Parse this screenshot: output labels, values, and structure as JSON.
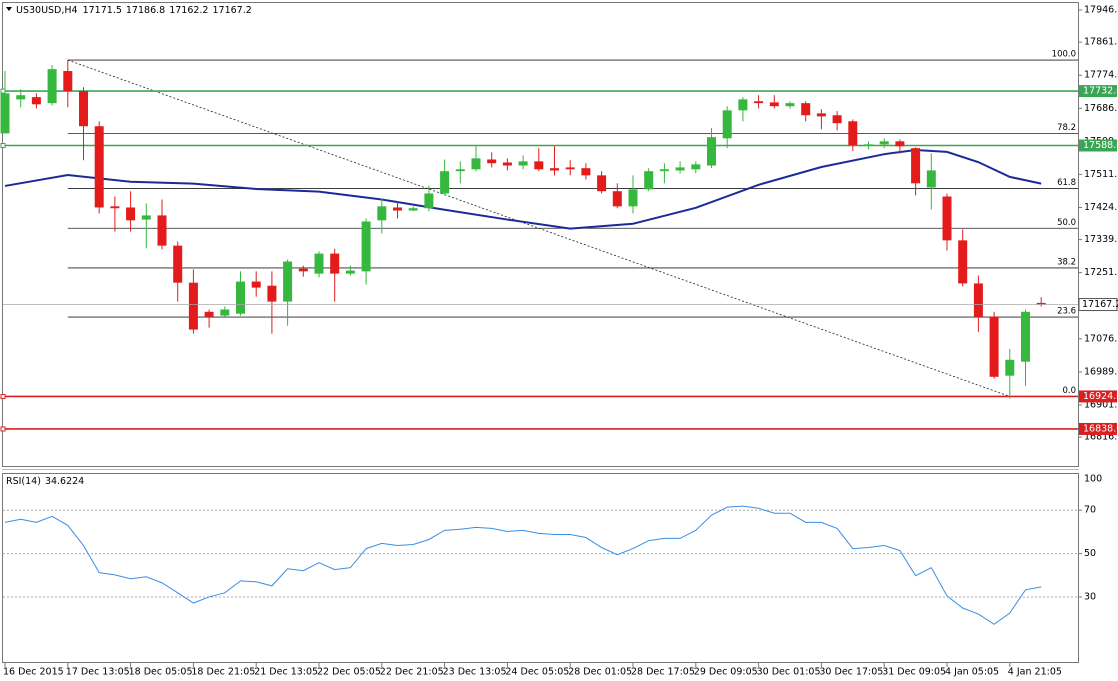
{
  "chart_data": {
    "type": "candlestick",
    "symbol": "US30USD,H4",
    "up_color": "#35b83d",
    "down_color": "#e31b1b",
    "x_labels": [
      "16 Dec 2015",
      "17 Dec 13:05",
      "18 Dec 05:05",
      "18 Dec 21:05",
      "21 Dec 13:05",
      "22 Dec 05:05",
      "22 Dec 21:05",
      "23 Dec 13:05",
      "24 Dec 05:05",
      "28 Dec 01:05",
      "28 Dec 17:05",
      "29 Dec 09:05",
      "30 Dec 01:05",
      "30 Dec 17:05",
      "31 Dec 09:05",
      "4 Jan 05:05",
      "4 Jan 21:05"
    ],
    "open": [
      17620,
      17710,
      17716,
      17700,
      17785,
      17732,
      17639,
      17427,
      17424,
      17392,
      17403,
      17323,
      17225,
      17148,
      17138,
      17143,
      17228,
      17217,
      17175,
      17262,
      17249,
      17302,
      17249,
      17255,
      17390,
      17424,
      17416,
      17422,
      17461,
      17520,
      17525,
      17551,
      17543,
      17535,
      17546,
      17528,
      17530,
      17528,
      17509,
      17467,
      17427,
      17472,
      17520,
      17522,
      17525,
      17535,
      17607,
      17681,
      17705,
      17702,
      17692,
      17700,
      17673,
      17668,
      17652,
      17589,
      17591,
      17599,
      17581,
      17477,
      17453,
      17337,
      17223,
      17135,
      16979,
      17016,
      17171.5
    ],
    "high": [
      17785,
      17737,
      17726,
      17801,
      17814,
      17742,
      17652,
      17453,
      17467,
      17435,
      17445,
      17334,
      17260,
      17154,
      17162,
      17255,
      17255,
      17255,
      17286,
      17270,
      17308,
      17315,
      17270,
      17395,
      17448,
      17440,
      17427,
      17482,
      17551,
      17546,
      17586,
      17570,
      17554,
      17562,
      17581,
      17586,
      17549,
      17541,
      17520,
      17488,
      17509,
      17528,
      17541,
      17546,
      17546,
      17634,
      17692,
      17716,
      17721,
      17721,
      17705,
      17705,
      17684,
      17679,
      17657,
      17599,
      17607,
      17604,
      17583,
      17567,
      17461,
      17366,
      17244,
      17148,
      17050,
      17154,
      17186.8
    ],
    "low": [
      17620,
      17689,
      17686,
      17694,
      17689,
      17549,
      17408,
      17360,
      17360,
      17316,
      17313,
      17175,
      17090,
      17106,
      17135,
      17138,
      17188,
      17090,
      17111,
      17241,
      17239,
      17175,
      17244,
      17220,
      17355,
      17395,
      17414,
      17414,
      17456,
      17488,
      17520,
      17530,
      17522,
      17525,
      17520,
      17509,
      17509,
      17498,
      17461,
      17422,
      17408,
      17467,
      17488,
      17514,
      17514,
      17528,
      17581,
      17652,
      17686,
      17686,
      17686,
      17652,
      17631,
      17628,
      17573,
      17578,
      17581,
      17567,
      17456,
      17419,
      17310,
      17215,
      17095,
      16971,
      16918,
      16952,
      17162.2
    ],
    "close": [
      17726,
      17721,
      17697,
      17790,
      17732,
      17639,
      17424,
      17422,
      17390,
      17403,
      17323,
      17225,
      17101,
      17135,
      17154,
      17228,
      17212,
      17175,
      17281,
      17255,
      17302,
      17249,
      17257,
      17387,
      17427,
      17416,
      17422,
      17461,
      17520,
      17525,
      17554,
      17541,
      17535,
      17546,
      17525,
      17522,
      17525,
      17509,
      17467,
      17427,
      17472,
      17520,
      17525,
      17530,
      17538,
      17610,
      17681,
      17710,
      17700,
      17692,
      17700,
      17668,
      17665,
      17647,
      17589,
      17591,
      17599,
      17586,
      17488,
      17522,
      17337,
      17223,
      17135,
      16976,
      17021,
      17148,
      17167.2
    ],
    "ylim": [
      16740,
      17965
    ],
    "yticks": [
      17946.5,
      17861.5,
      {
        "value": 17774,
        "label": "17774.0"
      },
      17686.5,
      {
        "value": 17599,
        "label": "17599.0"
      },
      17511.5,
      {
        "value": 17424,
        "label": "17424.0"
      },
      {
        "value": 17339,
        "label": "17339.0"
      },
      17251.5,
      17076.5,
      {
        "value": 16989,
        "label": "16989.0"
      },
      16901.5,
      16816.5
    ],
    "ma": {
      "color": "#1c2a99",
      "x": [
        0,
        4,
        8,
        12,
        16,
        20,
        24,
        28,
        32,
        36,
        40,
        44,
        48,
        52,
        56,
        58,
        60,
        62,
        64,
        66
      ],
      "values": [
        17481,
        17510,
        17492,
        17487,
        17473,
        17466,
        17445,
        17418,
        17392,
        17368,
        17381,
        17423,
        17484,
        17531,
        17565,
        17576,
        17571,
        17544,
        17505,
        17487
      ]
    },
    "levels": [
      {
        "value": 17732,
        "label": "17732.0",
        "color": "#3aa655"
      },
      {
        "value": 17588,
        "label": "17588.0",
        "color": "#3aa655"
      },
      {
        "value": 16924,
        "label": "16924.0",
        "color": "#d92020"
      },
      {
        "value": 16838,
        "label": "16838.0",
        "color": "#d92020"
      }
    ],
    "fibonacci": [
      {
        "label": "100.0",
        "value": 17814
      },
      {
        "label": "78.2",
        "value": 17620
      },
      {
        "label": "61.8",
        "value": 17474
      },
      {
        "label": "50.0",
        "value": 17369
      },
      {
        "label": "38.2",
        "value": 17264
      },
      {
        "label": "23.6",
        "value": 17134
      },
      {
        "label": "0.0",
        "value": 16924
      }
    ],
    "indicator": {
      "type": "line",
      "name": "RSI(14)",
      "color": "#3a8ee6",
      "values": [
        64.4,
        65.8,
        64.4,
        67.2,
        63.0,
        53.7,
        41.2,
        40.2,
        38.4,
        39.3,
        36.5,
        31.9,
        27.2,
        30.0,
        31.9,
        37.4,
        37.0,
        35.1,
        43.0,
        42.1,
        45.8,
        42.6,
        43.5,
        52.3,
        54.7,
        53.7,
        54.2,
        56.5,
        60.7,
        61.2,
        62.1,
        61.6,
        60.2,
        60.7,
        59.3,
        58.8,
        58.8,
        57.4,
        52.8,
        49.5,
        52.3,
        56.0,
        57.0,
        57.0,
        60.7,
        67.7,
        71.4,
        71.9,
        70.9,
        68.6,
        68.6,
        64.4,
        64.4,
        61.6,
        52.3,
        52.8,
        53.7,
        51.4,
        39.8,
        43.5,
        30.5,
        24.9,
        22.1,
        17.4,
        22.6,
        33.3,
        34.6224
      ],
      "ylim": [
        0,
        86.7
      ],
      "yticks": [
        30,
        50,
        70
      ],
      "scale_max_label": 100
    }
  }
}
